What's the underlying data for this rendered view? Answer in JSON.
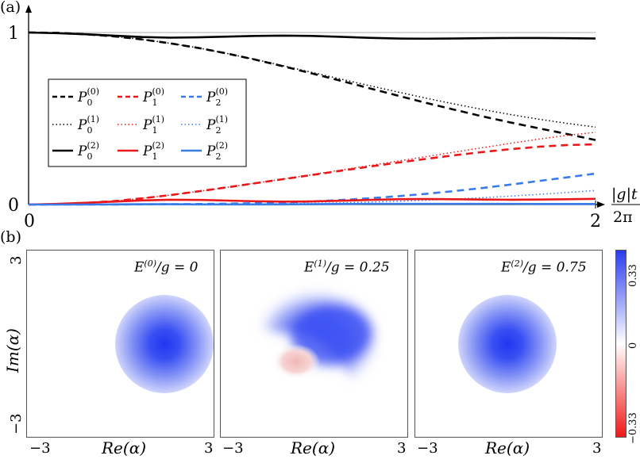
{
  "figure": {
    "panel_a_label": "(a)",
    "panel_b_label": "(b)"
  },
  "chart_data": [
    {
      "type": "line",
      "x_label_num": "|g|t",
      "x_label_den": "2π",
      "xlim": [
        0,
        2
      ],
      "ylim": [
        0,
        1
      ],
      "xticks": [
        "0",
        "2"
      ],
      "yticks": [
        "0",
        "1"
      ],
      "legend": {
        "position": "left-middle",
        "columns": 3
      },
      "series": [
        {
          "name": "P0(0)",
          "state": "0",
          "order": "0",
          "color": "#000000",
          "style": "dashed",
          "x": [
            0,
            0.1,
            0.2,
            0.3,
            0.4,
            0.5,
            0.6,
            0.7,
            0.8,
            0.9,
            1.0,
            1.1,
            1.2,
            1.3,
            1.4,
            1.5,
            1.6,
            1.7,
            1.8,
            1.9,
            2.0
          ],
          "y": [
            1.0,
            0.998,
            0.99,
            0.978,
            0.96,
            0.937,
            0.91,
            0.878,
            0.842,
            0.803,
            0.762,
            0.72,
            0.677,
            0.634,
            0.592,
            0.552,
            0.513,
            0.477,
            0.443,
            0.41,
            0.375
          ]
        },
        {
          "name": "P1(0)",
          "state": "1",
          "order": "0",
          "color": "#e8181b",
          "style": "dashed",
          "x": [
            0,
            0.1,
            0.2,
            0.3,
            0.4,
            0.5,
            0.6,
            0.7,
            0.8,
            0.9,
            1.0,
            1.1,
            1.2,
            1.3,
            1.4,
            1.5,
            1.6,
            1.7,
            1.8,
            1.9,
            2.0
          ],
          "y": [
            0,
            0.002,
            0.009,
            0.02,
            0.036,
            0.055,
            0.077,
            0.1,
            0.124,
            0.148,
            0.172,
            0.196,
            0.22,
            0.243,
            0.265,
            0.286,
            0.305,
            0.322,
            0.336,
            0.346,
            0.35
          ]
        },
        {
          "name": "P2(0)",
          "state": "2",
          "order": "0",
          "color": "#3a7bea",
          "style": "dashed",
          "x": [
            0,
            0.1,
            0.2,
            0.3,
            0.4,
            0.5,
            0.6,
            0.7,
            0.8,
            0.9,
            1.0,
            1.1,
            1.2,
            1.3,
            1.4,
            1.5,
            1.6,
            1.7,
            1.8,
            1.9,
            2.0
          ],
          "y": [
            0,
            0,
            0,
            0,
            0.001,
            0.002,
            0.003,
            0.005,
            0.008,
            0.012,
            0.018,
            0.026,
            0.036,
            0.048,
            0.062,
            0.078,
            0.096,
            0.116,
            0.137,
            0.158,
            0.18
          ]
        },
        {
          "name": "P0(1)",
          "state": "0",
          "order": "1",
          "color": "#000000",
          "style": "dotted",
          "x": [
            0,
            0.1,
            0.2,
            0.3,
            0.4,
            0.5,
            0.6,
            0.7,
            0.8,
            0.9,
            1.0,
            1.1,
            1.2,
            1.3,
            1.4,
            1.5,
            1.6,
            1.7,
            1.8,
            1.9,
            2.0
          ],
          "y": [
            1.0,
            0.998,
            0.99,
            0.978,
            0.96,
            0.937,
            0.91,
            0.878,
            0.843,
            0.806,
            0.768,
            0.73,
            0.692,
            0.655,
            0.619,
            0.585,
            0.553,
            0.523,
            0.496,
            0.472,
            0.45
          ]
        },
        {
          "name": "P1(1)",
          "state": "1",
          "order": "1",
          "color": "#e8181b",
          "style": "dotted",
          "x": [
            0,
            0.1,
            0.2,
            0.3,
            0.4,
            0.5,
            0.6,
            0.7,
            0.8,
            0.9,
            1.0,
            1.1,
            1.2,
            1.3,
            1.4,
            1.5,
            1.6,
            1.7,
            1.8,
            1.9,
            2.0
          ],
          "y": [
            0,
            0.002,
            0.009,
            0.02,
            0.036,
            0.055,
            0.077,
            0.1,
            0.124,
            0.149,
            0.174,
            0.2,
            0.226,
            0.252,
            0.278,
            0.304,
            0.33,
            0.356,
            0.38,
            0.402,
            0.42
          ]
        },
        {
          "name": "P2(1)",
          "state": "2",
          "order": "1",
          "color": "#3a7bea",
          "style": "dotted",
          "x": [
            0,
            0.1,
            0.2,
            0.3,
            0.4,
            0.5,
            0.6,
            0.7,
            0.8,
            0.9,
            1.0,
            1.1,
            1.2,
            1.3,
            1.4,
            1.5,
            1.6,
            1.7,
            1.8,
            1.9,
            2.0
          ],
          "y": [
            0,
            0,
            0,
            0,
            0,
            0.001,
            0.001,
            0.002,
            0.003,
            0.005,
            0.007,
            0.01,
            0.014,
            0.019,
            0.025,
            0.032,
            0.04,
            0.049,
            0.059,
            0.07,
            0.082
          ]
        },
        {
          "name": "P0(2)",
          "state": "0",
          "order": "2",
          "color": "#000000",
          "style": "solid",
          "x": [
            0,
            0.1,
            0.2,
            0.3,
            0.4,
            0.5,
            0.6,
            0.7,
            0.8,
            0.9,
            1.0,
            1.1,
            1.2,
            1.3,
            1.4,
            1.5,
            1.6,
            1.7,
            1.8,
            1.9,
            2.0
          ],
          "y": [
            1.0,
            0.996,
            0.99,
            0.982,
            0.974,
            0.97,
            0.972,
            0.976,
            0.98,
            0.982,
            0.98,
            0.975,
            0.969,
            0.965,
            0.964,
            0.965,
            0.967,
            0.968,
            0.968,
            0.967,
            0.965
          ]
        },
        {
          "name": "P1(2)",
          "state": "1",
          "order": "2",
          "color": "#e8181b",
          "style": "solid",
          "x": [
            0,
            0.1,
            0.2,
            0.3,
            0.4,
            0.5,
            0.6,
            0.7,
            0.8,
            0.9,
            1.0,
            1.1,
            1.2,
            1.3,
            1.4,
            1.5,
            1.6,
            1.7,
            1.8,
            1.9,
            2.0
          ],
          "y": [
            0,
            0.004,
            0.01,
            0.017,
            0.024,
            0.028,
            0.027,
            0.023,
            0.019,
            0.017,
            0.018,
            0.022,
            0.027,
            0.031,
            0.032,
            0.031,
            0.029,
            0.028,
            0.029,
            0.031,
            0.033
          ]
        },
        {
          "name": "P2(2)",
          "state": "2",
          "order": "2",
          "color": "#3a7bea",
          "style": "solid",
          "x": [
            0,
            0.1,
            0.2,
            0.3,
            0.4,
            0.5,
            0.6,
            0.7,
            0.8,
            0.9,
            1.0,
            1.1,
            1.2,
            1.3,
            1.4,
            1.5,
            1.6,
            1.7,
            1.8,
            1.9,
            2.0
          ],
          "y": [
            0,
            0,
            0,
            0.001,
            0.002,
            0.002,
            0.001,
            0.001,
            0.001,
            0.001,
            0.002,
            0.003,
            0.004,
            0.004,
            0.004,
            0.004,
            0.004,
            0.004,
            0.003,
            0.003,
            0.003
          ]
        }
      ]
    },
    {
      "type": "heatmap",
      "panels": [
        {
          "title_sup": "(0)",
          "title_rest": "/g = 0",
          "peak_re": 1.2,
          "peak_im": 0,
          "sigma": 0.95
        },
        {
          "title_sup": "(1)",
          "title_rest": "/g = 0.25",
          "note": "crescent with negative lobe"
        },
        {
          "title_sup": "(2)",
          "title_rest": "/g = 0.75",
          "peak_re": 0.1,
          "peak_im": 0,
          "sigma": 0.95
        }
      ],
      "xlabel": "Re(α)",
      "ylabel": "Im(α)",
      "xticks": [
        "−3",
        "3"
      ],
      "yticks": [
        "3",
        "−3"
      ],
      "colorbar": {
        "ticks": [
          "0.33",
          "0",
          "−0.33"
        ],
        "max_color": "#2a3cf0",
        "min_color": "#f01818"
      }
    }
  ]
}
